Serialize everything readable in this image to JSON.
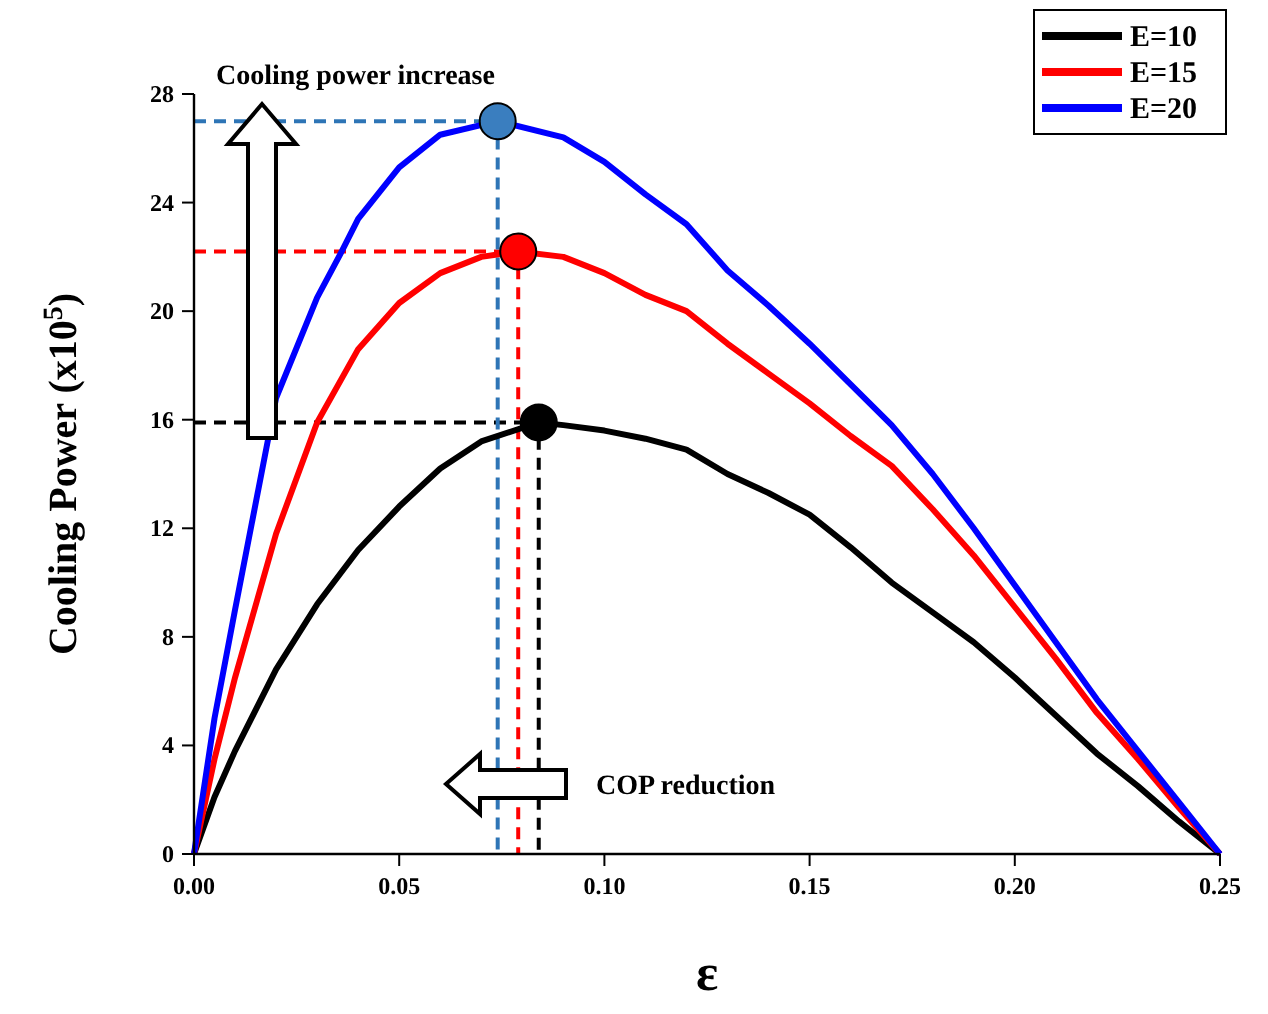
{
  "chart_data": {
    "type": "line",
    "xlabel": "ε",
    "ylabel": "Cooling Power (x10$^{5}$)",
    "xlim": [
      0,
      0.25
    ],
    "ylim": [
      0,
      28
    ],
    "xticks": [
      {
        "value": 0,
        "label": "0.00"
      },
      {
        "value": 0.05,
        "label": "0.05"
      },
      {
        "value": 0.1,
        "label": "0.10"
      },
      {
        "value": 0.15,
        "label": "0.15"
      },
      {
        "value": 0.2,
        "label": "0.20"
      },
      {
        "value": 0.25,
        "label": "0.25"
      }
    ],
    "yticks": [
      0,
      4,
      8,
      12,
      16,
      20,
      24,
      28
    ],
    "grid": false,
    "legend": "top right",
    "marker": "none",
    "line_style": "solid",
    "series": [
      {
        "name": "E=10",
        "color": "#000000",
        "x": [
          0,
          0.005,
          0.01,
          0.02,
          0.03,
          0.04,
          0.05,
          0.06,
          0.07,
          0.084,
          0.09,
          0.1,
          0.11,
          0.12,
          0.13,
          0.14,
          0.15,
          0.16,
          0.17,
          0.18,
          0.19,
          0.2,
          0.21,
          0.22,
          0.23,
          0.24,
          0.25
        ],
        "values": [
          0,
          2.1,
          3.8,
          6.8,
          9.2,
          11.2,
          12.8,
          14.2,
          15.2,
          15.9,
          15.8,
          15.6,
          15.3,
          14.9,
          14.0,
          13.3,
          12.5,
          11.3,
          10.0,
          8.9,
          7.8,
          6.5,
          5.1,
          3.7,
          2.5,
          1.2,
          0
        ]
      },
      {
        "name": "E=15",
        "color": "#ff0000",
        "x": [
          0,
          0.005,
          0.01,
          0.02,
          0.03,
          0.04,
          0.05,
          0.06,
          0.07,
          0.079,
          0.09,
          0.1,
          0.11,
          0.12,
          0.13,
          0.14,
          0.15,
          0.16,
          0.17,
          0.18,
          0.19,
          0.2,
          0.21,
          0.22,
          0.23,
          0.24,
          0.25
        ],
        "values": [
          0,
          3.5,
          6.5,
          11.8,
          15.9,
          18.6,
          20.3,
          21.4,
          22.0,
          22.2,
          22.0,
          21.4,
          20.6,
          20.0,
          18.8,
          17.7,
          16.6,
          15.4,
          14.3,
          12.7,
          11.0,
          9.1,
          7.2,
          5.2,
          3.5,
          1.7,
          0
        ]
      },
      {
        "name": "E=20",
        "color": "#0000ff",
        "x": [
          0,
          0.005,
          0.01,
          0.02,
          0.03,
          0.036,
          0.04,
          0.05,
          0.06,
          0.074,
          0.09,
          0.1,
          0.11,
          0.12,
          0.13,
          0.14,
          0.15,
          0.16,
          0.17,
          0.18,
          0.19,
          0.2,
          0.21,
          0.22,
          0.23,
          0.24,
          0.25
        ],
        "values": [
          0,
          5,
          9,
          16.8,
          20.5,
          22.2,
          23.4,
          25.3,
          26.5,
          27.0,
          26.4,
          25.5,
          24.3,
          23.2,
          21.5,
          20.2,
          18.8,
          17.3,
          15.8,
          14.0,
          12.0,
          9.9,
          7.8,
          5.7,
          3.8,
          1.9,
          0
        ]
      },
      {
        "type": "line",
        "line_style": "dashed",
        "color": "#000000",
        "x": [
          0,
          0.084,
          0.084
        ],
        "values": [
          15.9,
          15.9,
          0
        ]
      },
      {
        "type": "line",
        "line_style": "dashed",
        "color": "#ff0000",
        "x": [
          0,
          0.079,
          0.079
        ],
        "values": [
          22.2,
          22.2,
          0
        ]
      },
      {
        "type": "line",
        "line_style": "dashed",
        "color": "#2e75b6",
        "x": [
          0,
          0.074,
          0.074
        ],
        "values": [
          27.0,
          27.0,
          0
        ]
      },
      {
        "type": "scatter",
        "marker": "circle",
        "color": "#000000",
        "x": [
          0.084
        ],
        "values": [
          15.9
        ]
      },
      {
        "type": "scatter",
        "marker": "circle",
        "color": "#ff0000",
        "x": [
          0.079
        ],
        "values": [
          22.2
        ]
      },
      {
        "type": "scatter",
        "marker": "circle",
        "color": "#3a7ebf",
        "x": [
          0.074
        ],
        "values": [
          27.0
        ]
      }
    ],
    "annotations": [
      "Cooling power increase",
      "COP reduction"
    ]
  }
}
